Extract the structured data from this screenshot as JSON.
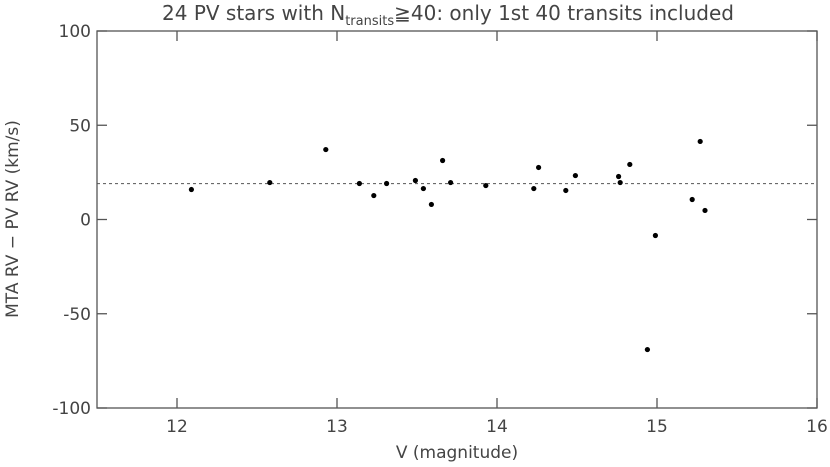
{
  "chart_data": {
    "type": "scatter",
    "title": {
      "prefix": "24 PV stars with N",
      "subscript": "transits",
      "suffix": "≧40: only 1st 40 transits included"
    },
    "x_label": "V (magnitude)",
    "y_label": "MTA RV − PV RV (km/s)",
    "x": [
      12.09,
      12.58,
      12.93,
      13.14,
      13.23,
      13.31,
      13.49,
      13.54,
      13.59,
      13.66,
      13.71,
      13.93,
      14.23,
      14.26,
      14.43,
      14.49,
      14.76,
      14.77,
      14.83,
      14.99,
      14.94,
      15.22,
      15.27,
      15.3
    ],
    "values": [
      15.9,
      19.6,
      37.1,
      19.1,
      12.7,
      19.1,
      20.7,
      16.4,
      8.0,
      31.3,
      19.6,
      18.0,
      16.4,
      27.6,
      15.4,
      23.3,
      22.8,
      19.6,
      29.2,
      -8.5,
      -69.0,
      10.6,
      41.4,
      4.8
    ],
    "color": "#000000",
    "reference_line": 19,
    "xlim": [
      11.5,
      16
    ],
    "ylim": [
      -100,
      100
    ],
    "xticks": [
      12,
      13,
      14,
      15,
      16
    ],
    "yticks": [
      -100,
      -50,
      0,
      50,
      100
    ]
  }
}
